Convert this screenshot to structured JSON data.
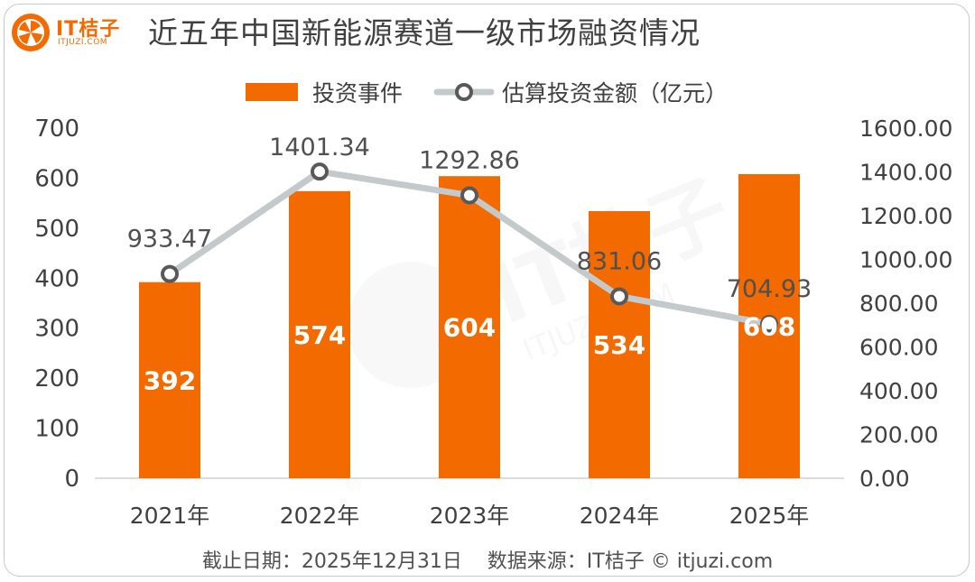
{
  "brand": {
    "name": "IT桔子",
    "sub": "ITJUZI.COM",
    "watermark_main": "IT桔子",
    "watermark_sub": "ITJUZI.COM"
  },
  "title": "近五年中国新能源赛道一级市场融资情况",
  "footer": "截止日期：2025年12月31日    数据来源：IT桔子 © itjuzi.com",
  "colors": {
    "bar": "#f26a00",
    "line": "#c4c9cc",
    "marker_ring": "#595959",
    "text": "#404040"
  },
  "chart_data": {
    "type": "bar",
    "categories": [
      "2021年",
      "2022年",
      "2023年",
      "2024年",
      "2025年"
    ],
    "series": [
      {
        "name": "投资事件",
        "type": "bar",
        "axis": "left",
        "values": [
          392,
          574,
          604,
          534,
          608
        ],
        "labels": [
          "392",
          "574",
          "604",
          "534",
          "608"
        ]
      },
      {
        "name": "估算投资金额（亿元）",
        "type": "line",
        "axis": "right",
        "values": [
          933.47,
          1401.34,
          1292.86,
          831.06,
          704.93
        ],
        "labels": [
          "933.47",
          "1401.34",
          "1292.86",
          "831.06",
          "704.93"
        ]
      }
    ],
    "left_axis": {
      "ylim": [
        0,
        700
      ],
      "ticks": [
        "0",
        "100",
        "200",
        "300",
        "400",
        "500",
        "600",
        "700"
      ]
    },
    "right_axis": {
      "ylim": [
        0,
        1600
      ],
      "ticks": [
        "0.00",
        "200.00",
        "400.00",
        "600.00",
        "800.00",
        "1000.00",
        "1200.00",
        "1400.00",
        "1600.00"
      ]
    },
    "legend": {
      "position": "top-center",
      "items": [
        "投资事件",
        "估算投资金额（亿元）"
      ]
    },
    "grid": false
  }
}
